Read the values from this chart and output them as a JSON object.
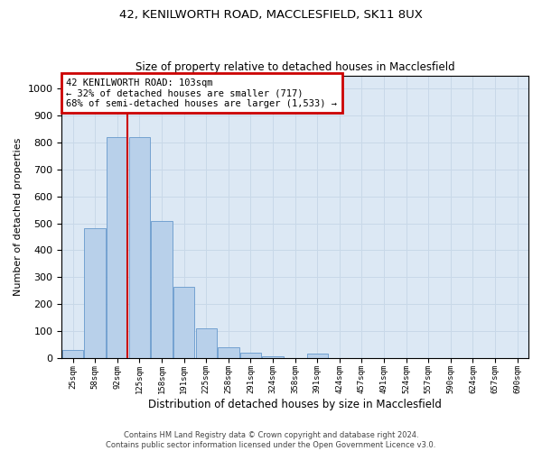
{
  "title1": "42, KENILWORTH ROAD, MACCLESFIELD, SK11 8UX",
  "title2": "Size of property relative to detached houses in Macclesfield",
  "xlabel": "Distribution of detached houses by size in Macclesfield",
  "ylabel": "Number of detached properties",
  "footnote": "Contains HM Land Registry data © Crown copyright and database right 2024.\nContains public sector information licensed under the Open Government Licence v3.0.",
  "bar_labels": [
    "25sqm",
    "58sqm",
    "92sqm",
    "125sqm",
    "158sqm",
    "191sqm",
    "225sqm",
    "258sqm",
    "291sqm",
    "324sqm",
    "358sqm",
    "391sqm",
    "424sqm",
    "457sqm",
    "491sqm",
    "524sqm",
    "557sqm",
    "590sqm",
    "624sqm",
    "657sqm",
    "690sqm"
  ],
  "bar_values": [
    30,
    480,
    820,
    820,
    510,
    265,
    110,
    40,
    20,
    5,
    0,
    15,
    0,
    0,
    0,
    0,
    0,
    0,
    0,
    0,
    0
  ],
  "bar_color": "#b8d0ea",
  "bar_edge_color": "#6699cc",
  "grid_color": "#c8d8e8",
  "background_color": "#dce8f4",
  "annotation_text": "42 KENILWORTH ROAD: 103sqm\n← 32% of detached houses are smaller (717)\n68% of semi-detached houses are larger (1,533) →",
  "annotation_box_color": "#ffffff",
  "annotation_box_edge": "#cc0000",
  "vline_x": 2,
  "vline_color": "#cc0000",
  "ylim": [
    0,
    1050
  ],
  "yticks": [
    0,
    100,
    200,
    300,
    400,
    500,
    600,
    700,
    800,
    900,
    1000
  ],
  "bin_width": 33,
  "n_bins": 21
}
